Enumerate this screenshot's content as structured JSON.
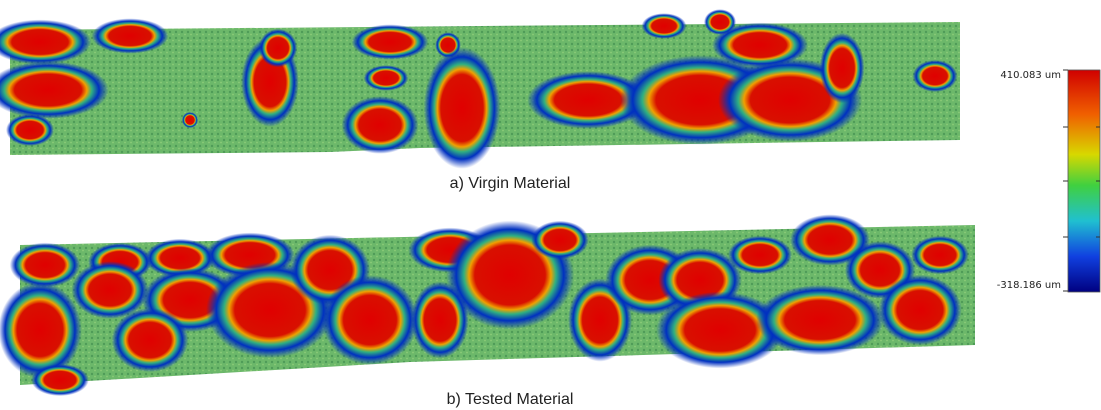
{
  "panels": [
    {
      "caption": "a) Virgin Material"
    },
    {
      "caption": "b) Tested Material"
    }
  ],
  "colorbar": {
    "max_label": "410.083 um",
    "min_label": "-318.186 um"
  }
}
